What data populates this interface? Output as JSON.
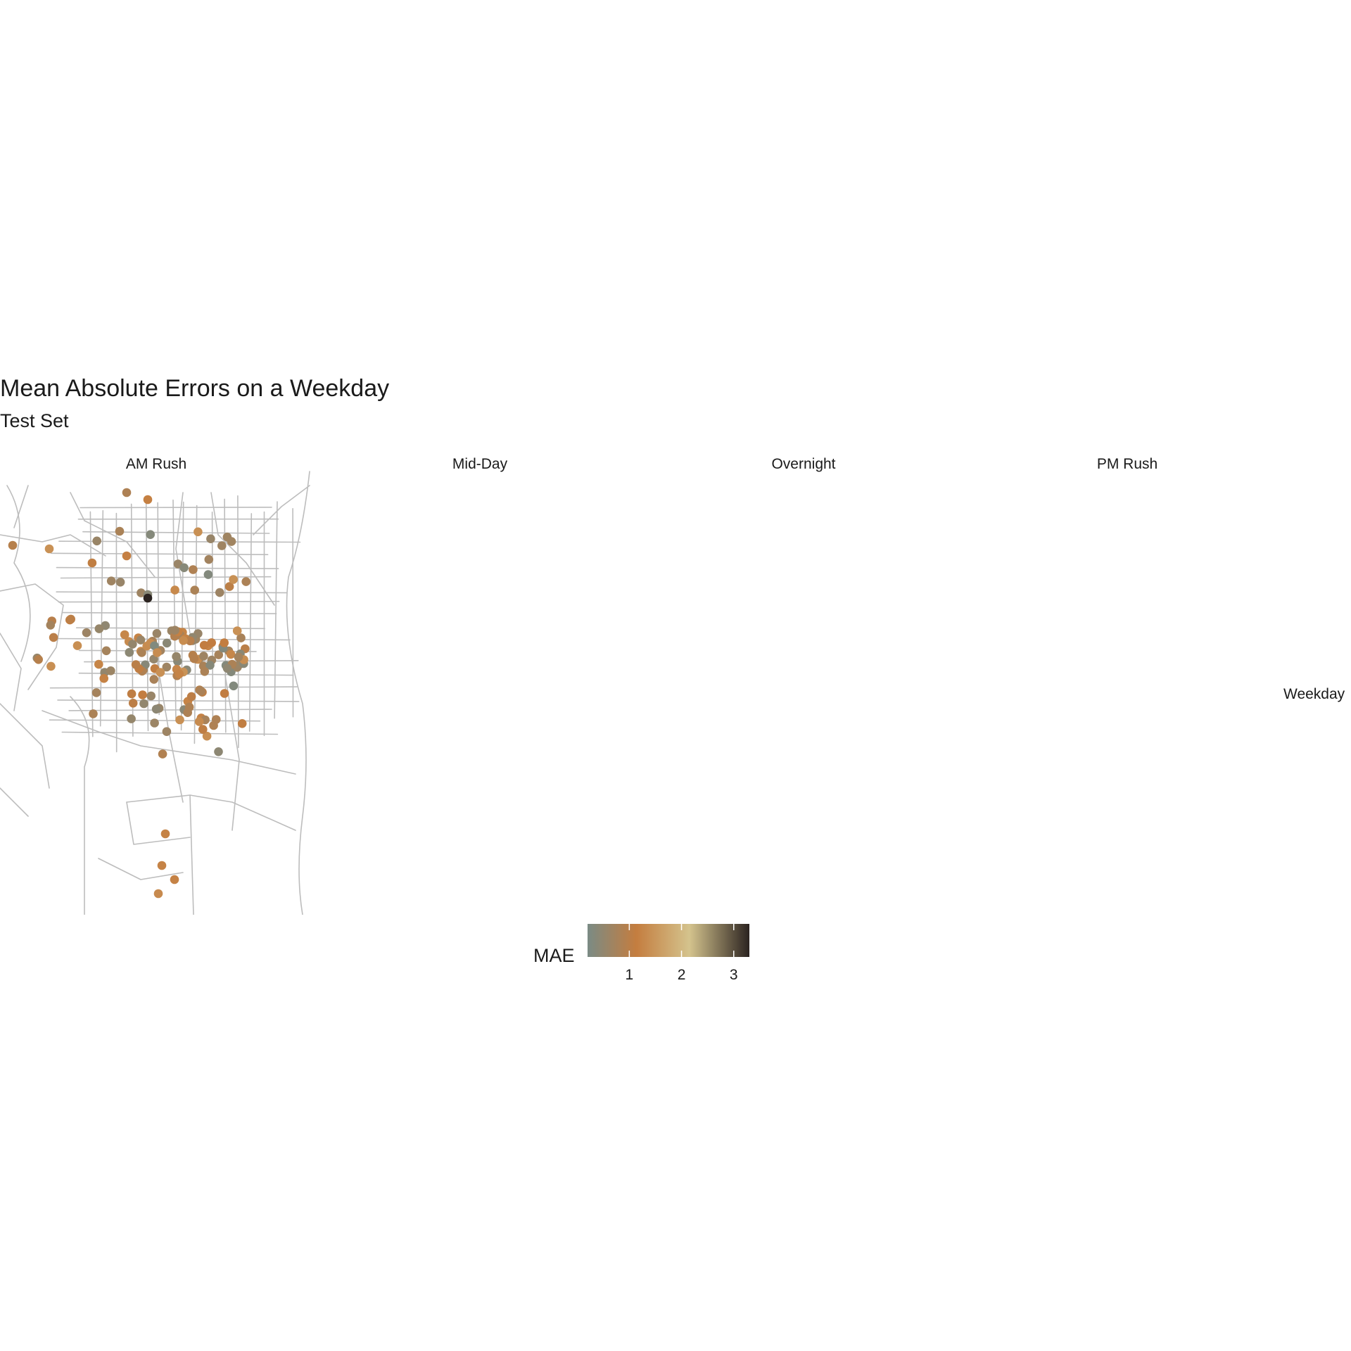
{
  "title": "Mean Absolute Errors on a Weekday",
  "subtitle": "Test Set",
  "chart_data": {
    "type": "scatter",
    "map": true,
    "facet_column_labels": [
      "AM Rush",
      "Mid-Day",
      "Overnight",
      "PM Rush"
    ],
    "facet_row_label": "Weekday",
    "legend": {
      "title": "MAE",
      "ticks": [
        1,
        2,
        3
      ],
      "range": [
        0.2,
        3.3
      ],
      "colors": [
        "#7a8b85",
        "#c47d3f",
        "#d4c38d",
        "#2b2320"
      ],
      "position": "bottom"
    },
    "approx_point_count_per_panel": 150,
    "points_note_excluded": true
  }
}
